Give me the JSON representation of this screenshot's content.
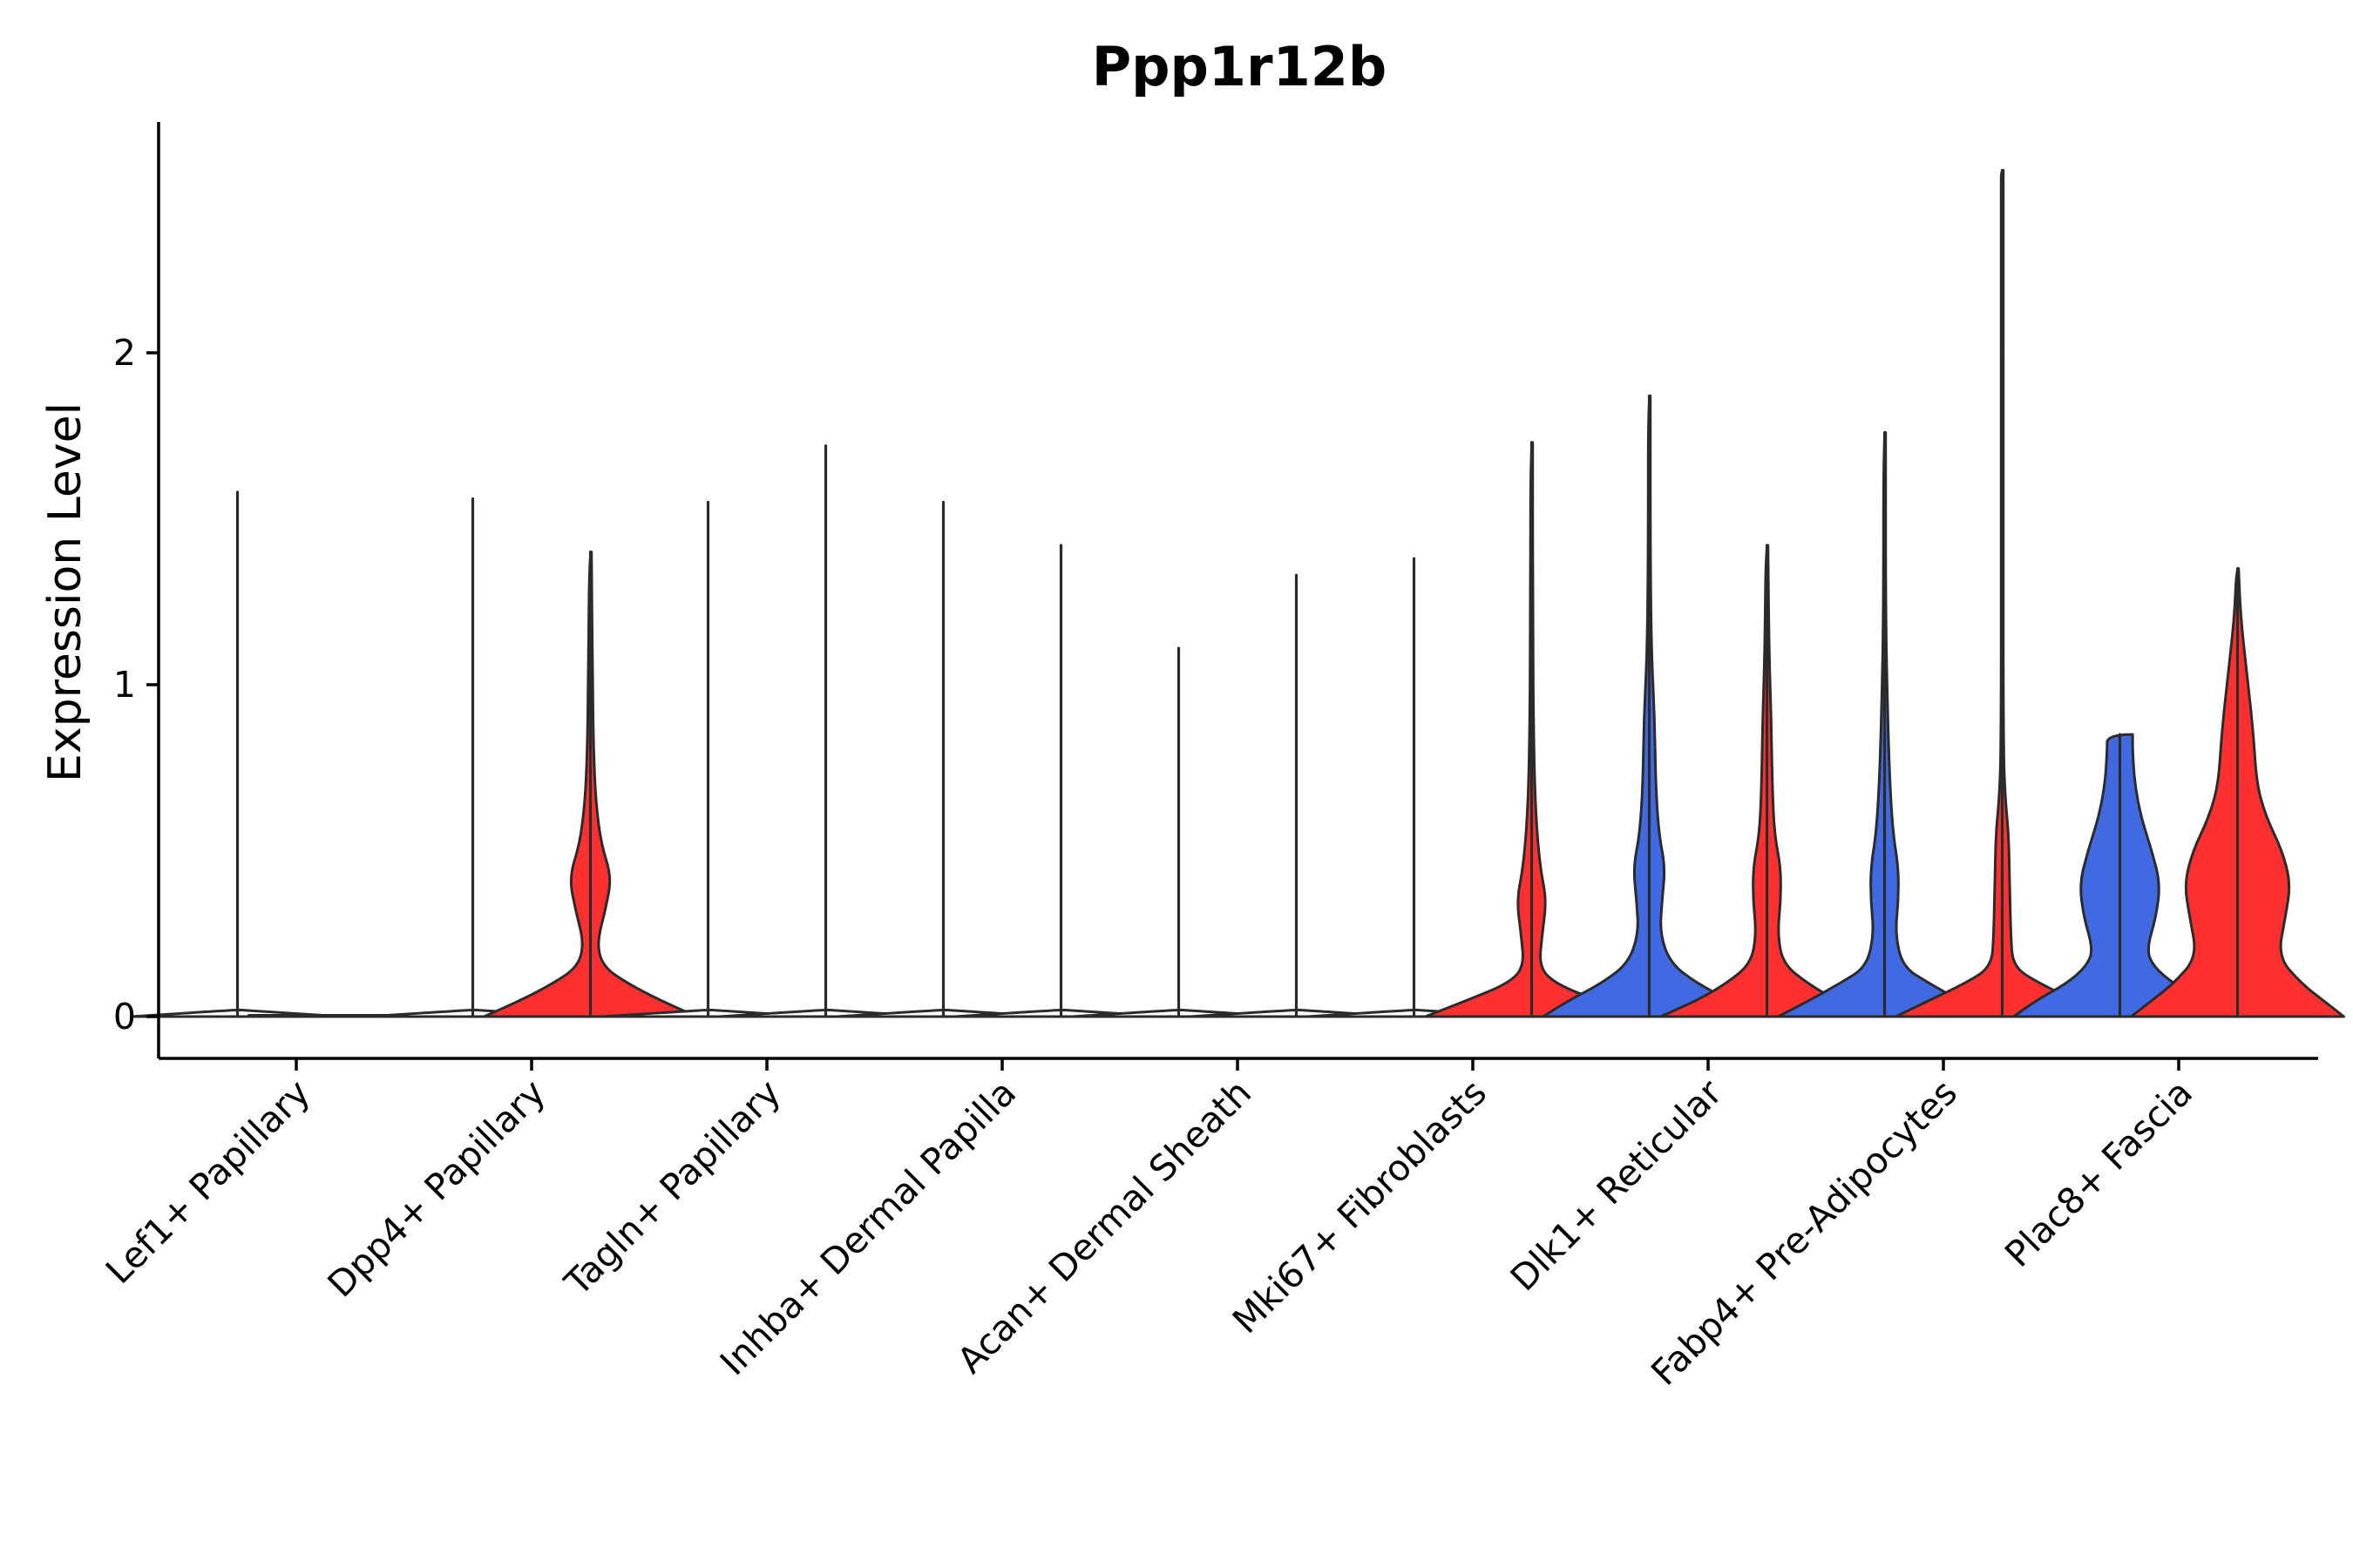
{
  "chart_data": {
    "type": "violin",
    "title": "Ppp1r12b",
    "xlabel": "",
    "ylabel": "Expression Level",
    "ylim": [
      -0.13,
      2.7
    ],
    "yticks": [
      0,
      1,
      2
    ],
    "categories": [
      "Lef1+ Papillary",
      "Dpp4+ Papillary",
      "Tagln+ Papillary",
      "Inhba+ Dermal Papilla",
      "Acan+ Dermal Sheath",
      "Mki67+ Fibroblasts",
      "Dlk1+ Reticular",
      "Fabp4+ Pre-Adipocytes",
      "Plac8+ Fascia"
    ],
    "split_colors": {
      "left": "#4169E1",
      "right": "#FF3030"
    },
    "violins": [
      {
        "category": "Lef1+ Papillary",
        "split": "left",
        "max": 1.58,
        "density": [
          [
            0,
            1.0
          ],
          [
            0.02,
            0.02
          ]
        ]
      },
      {
        "category": "Lef1+ Papillary",
        "split": "right",
        "max": 0.0,
        "density": [
          [
            0,
            1.0
          ]
        ]
      },
      {
        "category": "Dpp4+ Papillary",
        "split": "left",
        "max": 1.56,
        "density": [
          [
            0,
            1.0
          ],
          [
            0.02,
            0.02
          ]
        ]
      },
      {
        "category": "Dpp4+ Papillary",
        "split": "right",
        "max": 1.4,
        "density": [
          [
            0,
            1.0
          ],
          [
            0.05,
            0.65
          ],
          [
            0.1,
            0.35
          ],
          [
            0.15,
            0.12
          ],
          [
            0.22,
            0.06
          ],
          [
            0.32,
            0.14
          ],
          [
            0.42,
            0.2
          ],
          [
            0.52,
            0.1
          ],
          [
            0.65,
            0.05
          ],
          [
            0.8,
            0.03
          ],
          [
            1.0,
            0.02
          ],
          [
            1.4,
            0.01
          ]
        ]
      },
      {
        "category": "Tagln+ Papillary",
        "split": "left",
        "max": 1.55,
        "density": [
          [
            0,
            1.0
          ],
          [
            0.02,
            0.02
          ]
        ]
      },
      {
        "category": "Tagln+ Papillary",
        "split": "right",
        "max": 1.72,
        "density": [
          [
            0,
            1.0
          ],
          [
            0.02,
            0.02
          ]
        ]
      },
      {
        "category": "Inhba+ Dermal Papilla",
        "split": "left",
        "max": 1.55,
        "density": [
          [
            0,
            1.0
          ],
          [
            0.02,
            0.02
          ]
        ]
      },
      {
        "category": "Inhba+ Dermal Papilla",
        "split": "right",
        "max": 1.42,
        "density": [
          [
            0,
            1.0
          ],
          [
            0.02,
            0.02
          ]
        ]
      },
      {
        "category": "Acan+ Dermal Sheath",
        "split": "left",
        "max": 1.11,
        "density": [
          [
            0,
            1.0
          ],
          [
            0.02,
            0.02
          ]
        ]
      },
      {
        "category": "Acan+ Dermal Sheath",
        "split": "right",
        "max": 1.33,
        "density": [
          [
            0,
            1.0
          ],
          [
            0.02,
            0.02
          ]
        ]
      },
      {
        "category": "Mki67+ Fibroblasts",
        "split": "left",
        "max": 1.38,
        "density": [
          [
            0,
            1.0
          ],
          [
            0.02,
            0.02
          ]
        ]
      },
      {
        "category": "Mki67+ Fibroblasts",
        "split": "right",
        "max": 1.73,
        "density": [
          [
            0,
            1.0
          ],
          [
            0.05,
            0.6
          ],
          [
            0.1,
            0.22
          ],
          [
            0.15,
            0.07
          ],
          [
            0.25,
            0.1
          ],
          [
            0.35,
            0.14
          ],
          [
            0.45,
            0.08
          ],
          [
            0.6,
            0.04
          ],
          [
            0.8,
            0.02
          ],
          [
            1.2,
            0.01
          ],
          [
            1.73,
            0.005
          ]
        ]
      },
      {
        "category": "Dlk1+ Reticular",
        "split": "left",
        "max": 1.87,
        "density": [
          [
            0,
            1.0
          ],
          [
            0.05,
            0.75
          ],
          [
            0.1,
            0.45
          ],
          [
            0.16,
            0.2
          ],
          [
            0.25,
            0.1
          ],
          [
            0.35,
            0.12
          ],
          [
            0.45,
            0.15
          ],
          [
            0.55,
            0.09
          ],
          [
            0.7,
            0.06
          ],
          [
            0.9,
            0.05
          ],
          [
            1.1,
            0.02
          ],
          [
            1.4,
            0.01
          ],
          [
            1.87,
            0.005
          ]
        ]
      },
      {
        "category": "Dlk1+ Reticular",
        "split": "right",
        "max": 1.42,
        "density": [
          [
            0,
            1.0
          ],
          [
            0.05,
            0.65
          ],
          [
            0.1,
            0.38
          ],
          [
            0.16,
            0.15
          ],
          [
            0.25,
            0.1
          ],
          [
            0.35,
            0.13
          ],
          [
            0.45,
            0.13
          ],
          [
            0.55,
            0.07
          ],
          [
            0.7,
            0.05
          ],
          [
            0.9,
            0.04
          ],
          [
            1.1,
            0.02
          ],
          [
            1.42,
            0.005
          ]
        ]
      },
      {
        "category": "Fabp4+ Pre-Adipocytes",
        "split": "left",
        "max": 1.76,
        "density": [
          [
            0,
            1.0
          ],
          [
            0.05,
            0.7
          ],
          [
            0.1,
            0.42
          ],
          [
            0.15,
            0.17
          ],
          [
            0.25,
            0.1
          ],
          [
            0.35,
            0.13
          ],
          [
            0.45,
            0.13
          ],
          [
            0.55,
            0.08
          ],
          [
            0.7,
            0.05
          ],
          [
            0.9,
            0.03
          ],
          [
            1.2,
            0.01
          ],
          [
            1.76,
            0.005
          ]
        ]
      },
      {
        "category": "Fabp4+ Pre-Adipocytes",
        "split": "right",
        "max": 2.55,
        "density": [
          [
            0,
            1.0
          ],
          [
            0.05,
            0.68
          ],
          [
            0.1,
            0.35
          ],
          [
            0.15,
            0.1
          ],
          [
            0.25,
            0.08
          ],
          [
            0.4,
            0.07
          ],
          [
            0.55,
            0.06
          ],
          [
            0.65,
            0.03
          ],
          [
            0.8,
            0.01
          ],
          [
            1.5,
            0.005
          ],
          [
            2.5,
            0.01
          ],
          [
            2.55,
            0.01
          ]
        ]
      },
      {
        "category": "Plac8+ Fascia",
        "split": "left",
        "max": 0.85,
        "density": [
          [
            0,
            1.0
          ],
          [
            0.05,
            0.78
          ],
          [
            0.1,
            0.5
          ],
          [
            0.15,
            0.32
          ],
          [
            0.2,
            0.25
          ],
          [
            0.3,
            0.34
          ],
          [
            0.4,
            0.38
          ],
          [
            0.5,
            0.3
          ],
          [
            0.6,
            0.2
          ],
          [
            0.7,
            0.14
          ],
          [
            0.8,
            0.12
          ],
          [
            0.85,
            0.12
          ]
        ]
      },
      {
        "category": "Plac8+ Fascia",
        "split": "right",
        "max": 1.35,
        "density": [
          [
            0,
            1.0
          ],
          [
            0.05,
            0.8
          ],
          [
            0.1,
            0.6
          ],
          [
            0.18,
            0.38
          ],
          [
            0.3,
            0.45
          ],
          [
            0.4,
            0.5
          ],
          [
            0.5,
            0.42
          ],
          [
            0.6,
            0.27
          ],
          [
            0.7,
            0.18
          ],
          [
            0.85,
            0.15
          ],
          [
            1.0,
            0.1
          ],
          [
            1.2,
            0.03
          ],
          [
            1.35,
            0.005
          ]
        ]
      }
    ]
  }
}
